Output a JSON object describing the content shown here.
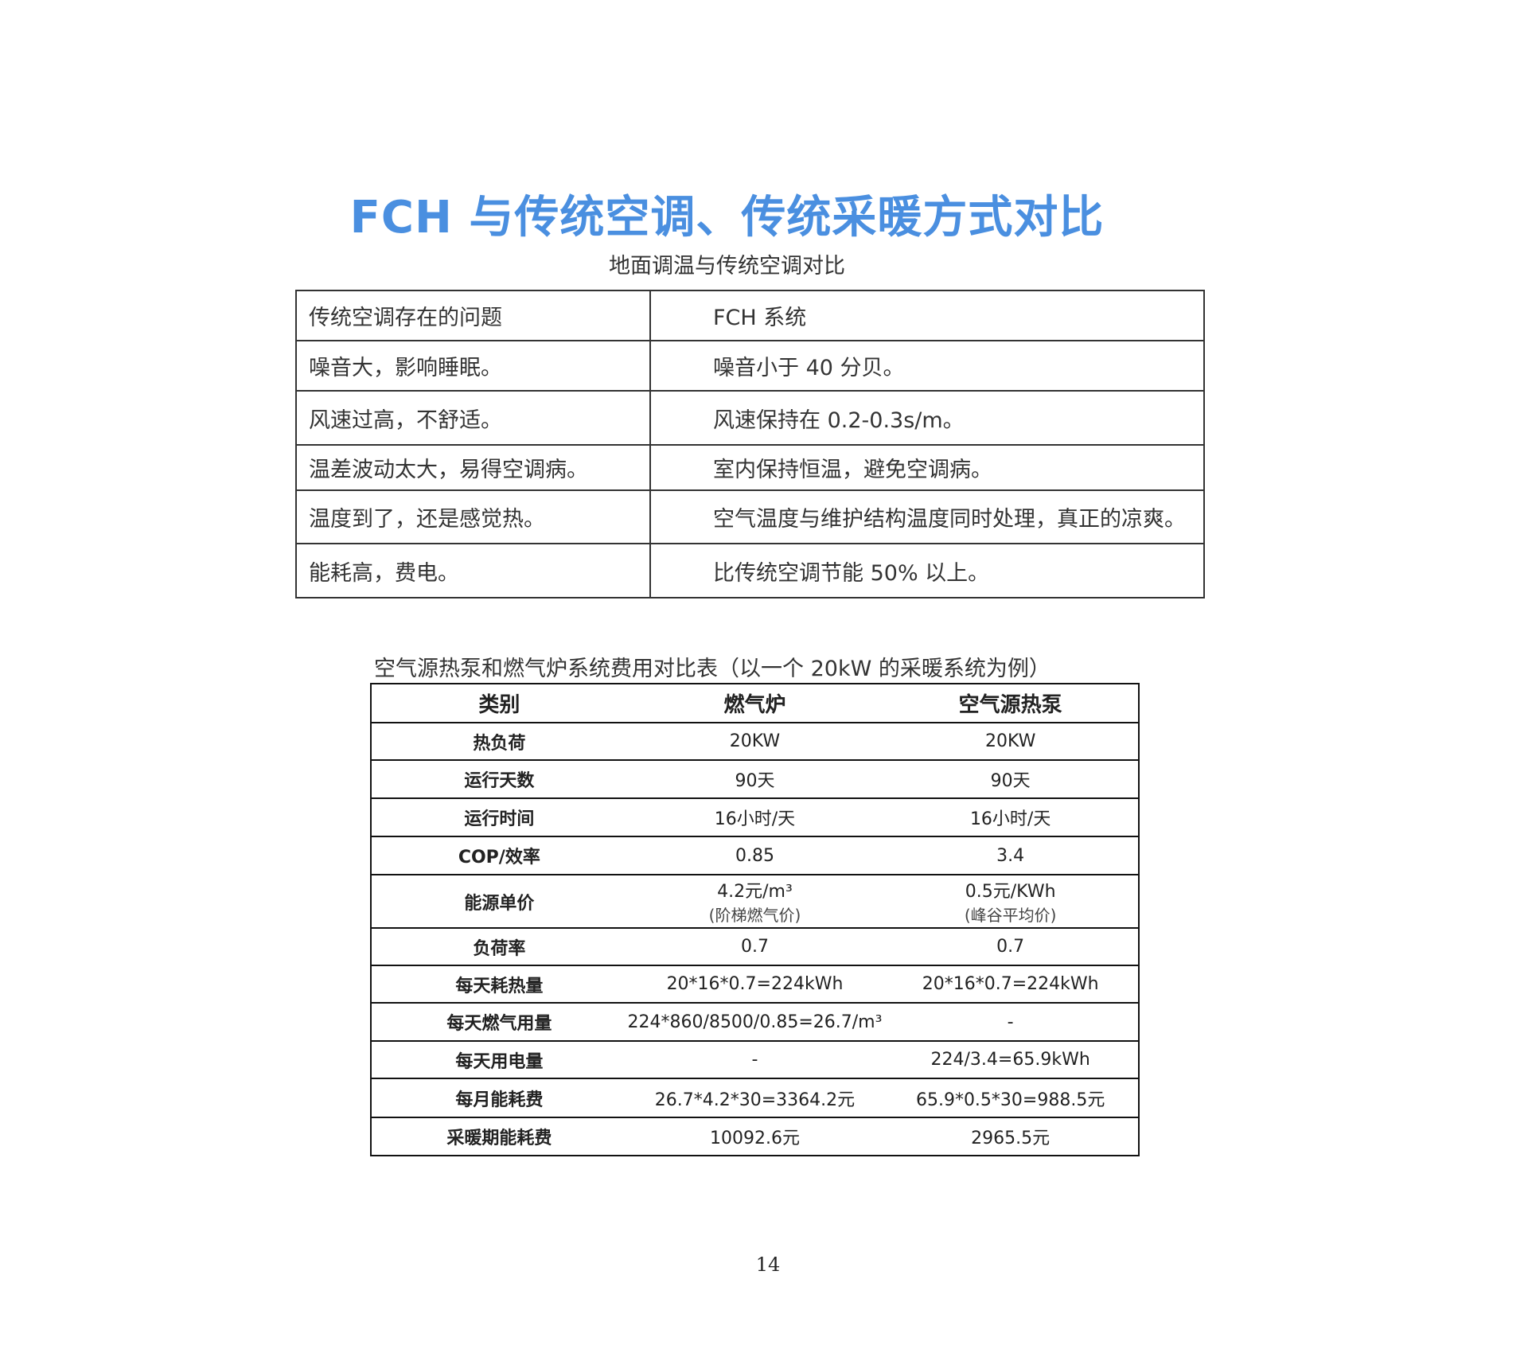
{
  "title": "FCH 与传统空调、传统采暖方式对比",
  "table1": {
    "caption": "地面调温与传统空调对比",
    "rows": [
      [
        "传统空调存在的问题",
        "FCH 系统"
      ],
      [
        "噪音大，影响睡眠。",
        "噪音小于 40 分贝。"
      ],
      [
        "风速过高，不舒适。",
        "风速保持在 0.2-0.3s/m。"
      ],
      [
        "温差波动太大，易得空调病。",
        "室内保持恒温，避免空调病。"
      ],
      [
        "温度到了，还是感觉热。",
        "空气温度与维护结构温度同时处理，真正的凉爽。"
      ],
      [
        "能耗高，费电。",
        "比传统空调节能 50% 以上。"
      ]
    ]
  },
  "table2": {
    "caption": "空气源热泵和燃气炉系统费用对比表（以一个 20kW 的采暖系统为例）",
    "headers": [
      "类别",
      "燃气炉",
      "空气源热泵"
    ],
    "rows": [
      [
        "热负荷",
        "20KW",
        "20KW"
      ],
      [
        "运行天数",
        "90天",
        "90天"
      ],
      [
        "运行时间",
        "16小时/天",
        "16小时/天"
      ],
      [
        "COP/效率",
        "0.85",
        "3.4"
      ],
      [
        "能源单价",
        "4.2元/m³",
        "0.5元/KWh"
      ],
      [
        "负荷率",
        "0.7",
        "0.7"
      ],
      [
        "每天耗热量",
        "20*16*0.7=224kWh",
        "20*16*0.7=224kWh"
      ],
      [
        "每天燃气用量",
        "224*860/8500/0.85=26.7/m³",
        "-"
      ],
      [
        "每天用电量",
        "-",
        "224/3.4=65.9kWh"
      ],
      [
        "每月能耗费",
        "26.7*4.2*30=3364.2元",
        "65.9*0.5*30=988.5元"
      ],
      [
        "采暖期能耗费",
        "10092.6元",
        "2965.5元"
      ]
    ],
    "price_notes": [
      "(阶梯燃气价)",
      "(峰谷平均价)"
    ]
  },
  "page_number": "14",
  "colors": {
    "title": "#4a8fe0"
  }
}
